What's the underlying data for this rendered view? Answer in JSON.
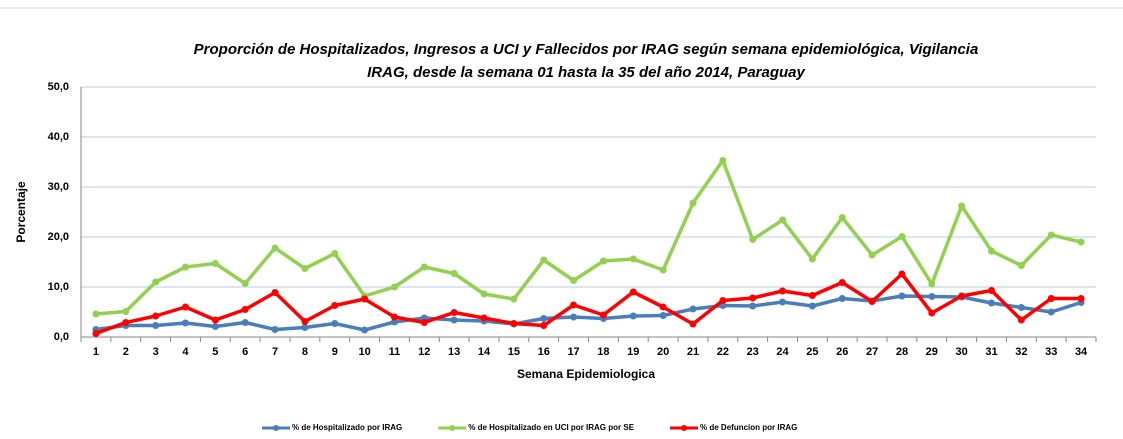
{
  "chart_data": {
    "type": "line",
    "title": [
      "Proporción de Hospitalizados, Ingresos a UCI y Fallecidos por IRAG según semana epidemiológica, Vigilancia",
      "IRAG, desde la semana 01 hasta la 35 del año 2014, Paraguay"
    ],
    "x_label": "Semana Epidemiologica",
    "y_label": "Porcentaje",
    "categories": [
      "1",
      "2",
      "3",
      "4",
      "5",
      "6",
      "7",
      "8",
      "9",
      "10",
      "11",
      "12",
      "13",
      "14",
      "15",
      "16",
      "17",
      "18",
      "19",
      "20",
      "21",
      "22",
      "23",
      "24",
      "25",
      "26",
      "27",
      "28",
      "29",
      "30",
      "31",
      "32",
      "33",
      "34"
    ],
    "series": [
      {
        "name": "% de Hospitalizado por IRAG",
        "color": "#4a7ebb",
        "values": [
          1.5,
          2.3,
          2.3,
          2.8,
          2.1,
          2.9,
          1.5,
          1.9,
          2.7,
          1.4,
          3.0,
          3.8,
          3.4,
          3.2,
          2.6,
          3.7,
          4.0,
          3.7,
          4.2,
          4.3,
          5.6,
          6.3,
          6.2,
          7.0,
          6.2,
          7.7,
          7.2,
          8.2,
          8.1,
          8.0,
          6.8,
          5.9,
          5.0,
          6.9
        ]
      },
      {
        "name": "% de Hospitalizado en UCI por IRAG por SE",
        "color": "#92d050",
        "values": [
          4.6,
          5.1,
          11.0,
          14.0,
          14.7,
          10.7,
          17.8,
          13.7,
          16.7,
          8.2,
          10.0,
          14.0,
          12.7,
          8.6,
          7.6,
          15.4,
          11.3,
          15.2,
          15.6,
          13.4,
          26.8,
          35.3,
          19.5,
          23.4,
          15.6,
          23.9,
          16.4,
          20.1,
          10.6,
          26.2,
          17.2,
          14.3,
          20.4,
          19.0
        ]
      },
      {
        "name": "% de Defuncion por IRAG",
        "color": "#ff0000",
        "values": [
          0.7,
          2.9,
          4.2,
          6.0,
          3.4,
          5.5,
          8.9,
          3.1,
          6.3,
          7.6,
          4.0,
          2.9,
          4.9,
          3.8,
          2.7,
          2.3,
          6.4,
          4.4,
          9.0,
          6.0,
          2.6,
          7.3,
          7.8,
          9.2,
          8.3,
          10.9,
          7.1,
          12.6,
          4.8,
          8.2,
          9.3,
          3.4,
          7.7,
          7.7
        ]
      }
    ],
    "ylim": [
      0,
      50
    ],
    "yticks": [
      {
        "value": 0,
        "label": "0,0"
      },
      {
        "value": 10,
        "label": "10,0"
      },
      {
        "value": 20,
        "label": "20,0"
      },
      {
        "value": 30,
        "label": "30,0"
      },
      {
        "value": 40,
        "label": "40,0"
      },
      {
        "value": 50,
        "label": "50,0"
      }
    ],
    "grid": true
  }
}
